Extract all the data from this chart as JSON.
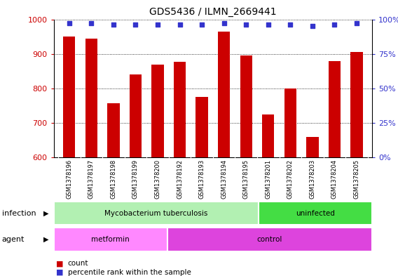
{
  "title": "GDS5436 / ILMN_2669441",
  "samples": [
    "GSM1378196",
    "GSM1378197",
    "GSM1378198",
    "GSM1378199",
    "GSM1378200",
    "GSM1378192",
    "GSM1378193",
    "GSM1378194",
    "GSM1378195",
    "GSM1378201",
    "GSM1378202",
    "GSM1378203",
    "GSM1378204",
    "GSM1378205"
  ],
  "counts": [
    950,
    945,
    757,
    840,
    868,
    876,
    775,
    965,
    895,
    725,
    800,
    660,
    878,
    905
  ],
  "percentile_ranks": [
    97,
    97,
    96,
    96,
    96,
    96,
    96,
    97,
    96,
    96,
    96,
    95,
    96,
    97
  ],
  "ylim_left": [
    600,
    1000
  ],
  "ylim_right": [
    0,
    100
  ],
  "yticks_left": [
    600,
    700,
    800,
    900,
    1000
  ],
  "yticks_right": [
    0,
    25,
    50,
    75,
    100
  ],
  "bar_color": "#cc0000",
  "dot_color": "#3333cc",
  "plot_bg_color": "#ffffff",
  "xtick_bg_color": "#d0d0d0",
  "infection_groups": [
    {
      "label": "Mycobacterium tuberculosis",
      "start": 0,
      "end": 9,
      "color": "#b2f0b2"
    },
    {
      "label": "uninfected",
      "start": 9,
      "end": 14,
      "color": "#44dd44"
    }
  ],
  "agent_groups": [
    {
      "label": "metformin",
      "start": 0,
      "end": 5,
      "color": "#ff88ff"
    },
    {
      "label": "control",
      "start": 5,
      "end": 14,
      "color": "#dd44dd"
    }
  ],
  "legend_items": [
    {
      "color": "#cc0000",
      "label": "count"
    },
    {
      "color": "#3333cc",
      "label": "percentile rank within the sample"
    }
  ]
}
